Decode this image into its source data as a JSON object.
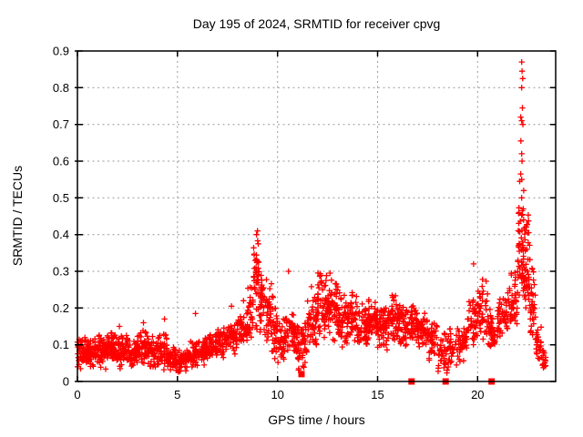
{
  "chart_data": {
    "type": "scatter",
    "title": "Day 195 of 2024, SRMTID for receiver cpvg",
    "xlabel": "GPS time / hours",
    "ylabel": "SRMTID / TECUs",
    "xlim": [
      0,
      23.9
    ],
    "ylim": [
      0,
      0.9
    ],
    "x_ticks": [
      0,
      5,
      10,
      15,
      20
    ],
    "y_ticks": [
      0,
      0.1,
      0.2,
      0.3,
      0.4,
      0.5,
      0.6,
      0.7,
      0.8,
      0.9
    ],
    "grid": "dashed-major-both-axes",
    "legend": "none",
    "marker_color": "#ff0000",
    "grid_color": "#9b9b9b",
    "axis_color": "#000000",
    "series": [
      {
        "name": "srmtid-plus-markers",
        "marker": "plus",
        "color": "#ff0000",
        "envelope_bins_x0_x1_ymin_ymax_count": [
          [
            0.0,
            0.5,
            0.03,
            0.13,
            60
          ],
          [
            0.5,
            1.0,
            0.03,
            0.12,
            55
          ],
          [
            1.0,
            1.5,
            0.03,
            0.13,
            55
          ],
          [
            1.5,
            2.0,
            0.04,
            0.14,
            55
          ],
          [
            2.0,
            2.5,
            0.03,
            0.13,
            55
          ],
          [
            2.5,
            3.0,
            0.03,
            0.12,
            50
          ],
          [
            3.0,
            3.5,
            0.04,
            0.14,
            50
          ],
          [
            3.5,
            4.0,
            0.03,
            0.13,
            50
          ],
          [
            4.0,
            4.5,
            0.03,
            0.14,
            50
          ],
          [
            4.5,
            5.0,
            0.02,
            0.1,
            45
          ],
          [
            5.0,
            5.5,
            0.02,
            0.09,
            45
          ],
          [
            5.5,
            6.0,
            0.03,
            0.11,
            45
          ],
          [
            6.0,
            6.5,
            0.04,
            0.12,
            45
          ],
          [
            6.5,
            7.0,
            0.05,
            0.14,
            45
          ],
          [
            7.0,
            7.5,
            0.06,
            0.15,
            45
          ],
          [
            7.5,
            8.0,
            0.07,
            0.17,
            45
          ],
          [
            8.0,
            8.5,
            0.08,
            0.19,
            45
          ],
          [
            8.5,
            8.8,
            0.1,
            0.3,
            30
          ],
          [
            8.8,
            9.1,
            0.12,
            0.41,
            40
          ],
          [
            9.1,
            9.4,
            0.1,
            0.34,
            35
          ],
          [
            9.4,
            9.7,
            0.08,
            0.3,
            35
          ],
          [
            9.7,
            10.0,
            0.06,
            0.24,
            35
          ],
          [
            10.0,
            10.5,
            0.04,
            0.19,
            45
          ],
          [
            10.5,
            11.0,
            0.06,
            0.2,
            45
          ],
          [
            11.0,
            11.5,
            0.02,
            0.16,
            45
          ],
          [
            11.5,
            12.0,
            0.08,
            0.26,
            50
          ],
          [
            12.0,
            12.5,
            0.1,
            0.33,
            55
          ],
          [
            12.5,
            13.0,
            0.1,
            0.3,
            55
          ],
          [
            13.0,
            13.5,
            0.08,
            0.26,
            50
          ],
          [
            13.5,
            14.0,
            0.1,
            0.26,
            50
          ],
          [
            14.0,
            14.5,
            0.08,
            0.23,
            50
          ],
          [
            14.5,
            15.0,
            0.1,
            0.24,
            50
          ],
          [
            15.0,
            15.5,
            0.08,
            0.22,
            50
          ],
          [
            15.5,
            16.0,
            0.1,
            0.25,
            50
          ],
          [
            16.0,
            16.5,
            0.08,
            0.22,
            50
          ],
          [
            16.5,
            17.0,
            0.1,
            0.23,
            45
          ],
          [
            17.0,
            17.5,
            0.08,
            0.2,
            45
          ],
          [
            17.5,
            18.0,
            0.05,
            0.18,
            40
          ],
          [
            18.0,
            18.5,
            0.01,
            0.14,
            35
          ],
          [
            18.5,
            19.0,
            0.03,
            0.15,
            35
          ],
          [
            19.0,
            19.5,
            0.05,
            0.16,
            40
          ],
          [
            19.5,
            20.0,
            0.08,
            0.24,
            40
          ],
          [
            20.0,
            20.5,
            0.1,
            0.28,
            40
          ],
          [
            20.5,
            21.0,
            0.08,
            0.2,
            40
          ],
          [
            21.0,
            21.5,
            0.1,
            0.24,
            40
          ],
          [
            21.5,
            22.0,
            0.12,
            0.32,
            45
          ],
          [
            22.0,
            22.3,
            0.18,
            0.5,
            45
          ],
          [
            22.3,
            22.6,
            0.15,
            0.48,
            45
          ],
          [
            22.6,
            22.9,
            0.08,
            0.35,
            35
          ],
          [
            22.9,
            23.2,
            0.04,
            0.15,
            25
          ],
          [
            23.2,
            23.5,
            0.02,
            0.1,
            15
          ]
        ],
        "outlier_points": [
          [
            2.1,
            0.15
          ],
          [
            3.3,
            0.16
          ],
          [
            4.35,
            0.17
          ],
          [
            5.9,
            0.185
          ],
          [
            7.7,
            0.205
          ],
          [
            8.3,
            0.22
          ],
          [
            9.0,
            0.41
          ],
          [
            8.95,
            0.4
          ],
          [
            10.55,
            0.3
          ],
          [
            19.8,
            0.32
          ],
          [
            22.2,
            0.87
          ],
          [
            22.22,
            0.845
          ],
          [
            22.25,
            0.825
          ],
          [
            22.2,
            0.8
          ],
          [
            22.24,
            0.745
          ],
          [
            22.15,
            0.72
          ],
          [
            22.2,
            0.71
          ],
          [
            22.26,
            0.7
          ],
          [
            22.16,
            0.655
          ],
          [
            22.2,
            0.62
          ],
          [
            22.22,
            0.6
          ],
          [
            22.15,
            0.565
          ],
          [
            22.2,
            0.55
          ],
          [
            22.1,
            0.545
          ],
          [
            22.3,
            0.52
          ],
          [
            22.2,
            0.5
          ],
          [
            22.28,
            0.47
          ],
          [
            22.24,
            0.455
          ],
          [
            22.3,
            0.44
          ]
        ]
      },
      {
        "name": "flagged-square-markers",
        "marker": "filled-square",
        "color": "#ff0000",
        "points": [
          [
            11.2,
            0.02
          ],
          [
            16.7,
            0.0
          ],
          [
            18.4,
            0.0
          ],
          [
            20.7,
            0.0
          ]
        ]
      }
    ]
  }
}
